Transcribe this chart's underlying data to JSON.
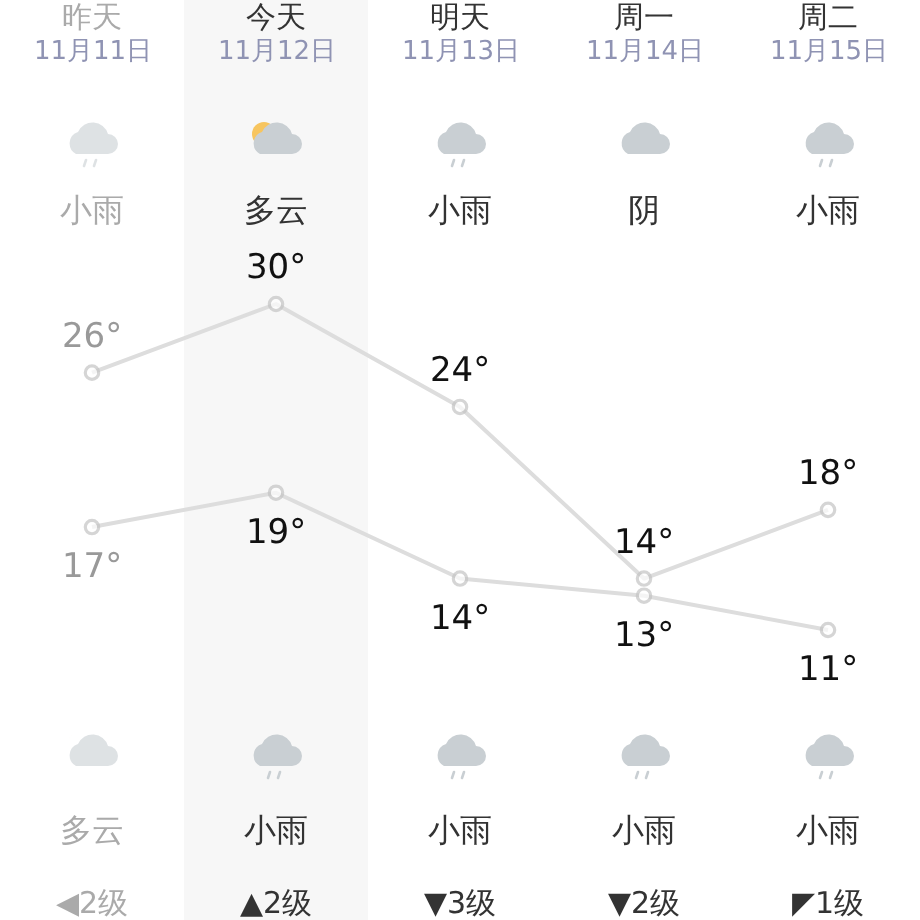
{
  "chart_data": {
    "type": "line",
    "categories": [
      "11月11日",
      "11月12日",
      "11月13日",
      "11月14日",
      "11月15日"
    ],
    "series": [
      {
        "color": "#dddddd",
        "values": [
          26,
          30,
          24,
          14,
          18
        ],
        "value_labels": [
          "26°",
          "30°",
          "24°",
          "14°",
          "18°"
        ]
      },
      {
        "color": "#dddddd",
        "values": [
          17,
          19,
          14,
          13,
          11
        ],
        "value_labels": [
          "17°",
          "19°",
          "14°",
          "13°",
          "11°"
        ]
      }
    ],
    "marker": "circle",
    "bands": [
      {
        "axis": "x",
        "from": "11月12日",
        "to": "11月12日",
        "color": "#f7f7f7"
      }
    ],
    "annotations": [
      "昨天",
      "今天",
      "明天",
      "周一",
      "周二",
      "小雨",
      "多云",
      "小雨",
      "阴",
      "小雨",
      "多云",
      "小雨",
      "小雨",
      "小雨",
      "小雨",
      "◀2级",
      "▲2级",
      "▼3级",
      "▼2级",
      "◤1级"
    ]
  }
}
